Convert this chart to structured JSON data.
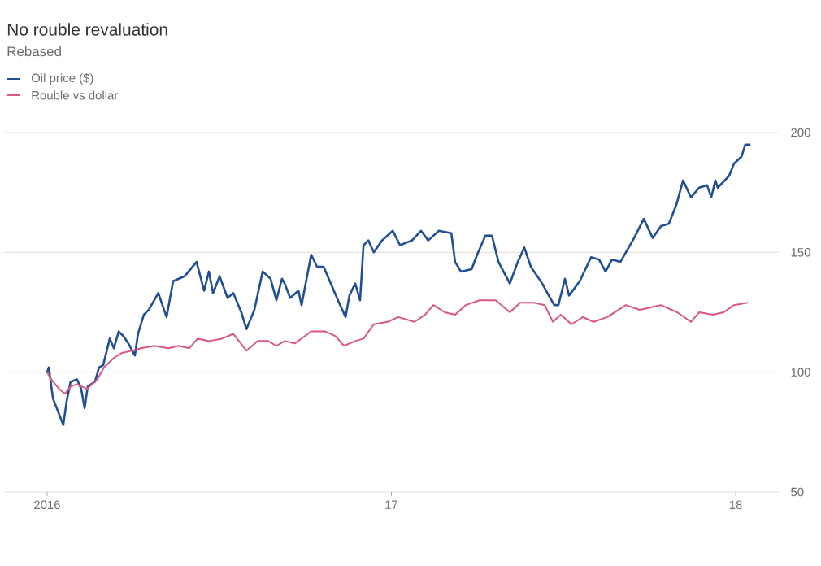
{
  "chart_data": {
    "type": "line",
    "title": "No rouble revaluation",
    "subtitle": "Rebased",
    "xlim": [
      2015.875,
      2018.125
    ],
    "ylim": [
      50,
      200
    ],
    "xticks": [
      {
        "value": 2016,
        "label": "2016"
      },
      {
        "value": 2017,
        "label": "17"
      },
      {
        "value": 2018,
        "label": "18"
      }
    ],
    "yticks": [
      50,
      100,
      150,
      200
    ],
    "grid": "y",
    "legend": "top left",
    "series": [
      {
        "name": "Oil price ($)",
        "color": "#204f98",
        "x": [
          2016.0,
          2016.005,
          2016.017,
          2016.028,
          2016.047,
          2016.057,
          2016.068,
          2016.087,
          2016.099,
          2016.109,
          2016.118,
          2016.139,
          2016.151,
          2016.163,
          2016.182,
          2016.194,
          2016.208,
          2016.222,
          2016.236,
          2016.255,
          2016.264,
          2016.281,
          2016.295,
          2016.323,
          2016.347,
          2016.366,
          2016.399,
          2016.434,
          2016.456,
          2016.47,
          2016.482,
          2016.501,
          2016.524,
          2016.541,
          2016.564,
          2016.579,
          2016.602,
          2016.626,
          2016.649,
          2016.666,
          2016.682,
          2016.69,
          2016.706,
          2016.73,
          2016.739,
          2016.767,
          2016.784,
          2016.803,
          2016.848,
          2016.867,
          2016.878,
          2016.895,
          2016.909,
          2016.919,
          2016.933,
          2016.949,
          2016.973,
          2017.004,
          2017.025,
          2017.06,
          2017.086,
          2017.107,
          2017.138,
          2017.174,
          2017.185,
          2017.202,
          2017.233,
          2017.249,
          2017.273,
          2017.292,
          2017.311,
          2017.344,
          2017.367,
          2017.386,
          2017.405,
          2017.438,
          2017.457,
          2017.473,
          2017.485,
          2017.504,
          2017.516,
          2017.547,
          2017.58,
          2017.603,
          2017.622,
          2017.641,
          2017.665,
          2017.681,
          2017.705,
          2017.733,
          2017.759,
          2017.783,
          2017.806,
          2017.828,
          2017.847,
          2017.87,
          2017.894,
          2017.917,
          2017.929,
          2017.941,
          2017.948,
          2017.981,
          2017.995,
          2018.017,
          2018.028,
          2018.043
        ],
        "values": [
          100,
          102,
          89,
          85,
          78,
          88,
          96,
          97,
          93,
          85,
          94,
          96,
          102,
          103,
          114,
          110,
          117,
          115,
          112,
          107,
          116,
          124,
          126,
          133,
          123,
          138,
          140,
          146,
          134,
          142,
          133,
          140,
          131,
          133,
          125,
          118,
          126,
          142,
          139,
          130,
          139,
          137,
          131,
          134,
          128,
          149,
          144,
          144,
          129,
          123,
          132,
          137,
          130,
          153,
          155,
          150,
          155,
          159,
          153,
          155,
          159,
          155,
          159,
          158,
          146,
          142,
          143,
          149,
          157,
          157,
          146,
          137,
          146,
          152,
          144,
          137,
          132,
          128,
          128,
          139,
          132,
          138,
          148,
          147,
          142,
          147,
          146,
          150,
          156,
          164,
          156,
          161,
          162,
          170,
          180,
          173,
          177,
          178,
          173,
          180,
          177,
          182,
          187,
          190,
          195,
          195
        ]
      },
      {
        "name": "Rouble vs dollar",
        "color": "#de5580",
        "x": [
          2016.0,
          2016.012,
          2016.035,
          2016.052,
          2016.068,
          2016.087,
          2016.116,
          2016.146,
          2016.165,
          2016.194,
          2016.217,
          2016.248,
          2016.272,
          2016.312,
          2016.352,
          2016.383,
          2016.413,
          2016.437,
          2016.47,
          2016.508,
          2016.541,
          2016.579,
          2016.612,
          2016.642,
          2016.666,
          2016.69,
          2016.72,
          2016.767,
          2016.808,
          2016.838,
          2016.862,
          2016.895,
          2016.919,
          2016.949,
          2016.989,
          2017.02,
          2017.067,
          2017.098,
          2017.122,
          2017.155,
          2017.185,
          2017.216,
          2017.256,
          2017.303,
          2017.344,
          2017.374,
          2017.414,
          2017.445,
          2017.469,
          2017.492,
          2017.523,
          2017.556,
          2017.587,
          2017.627,
          2017.681,
          2017.721,
          2017.783,
          2017.83,
          2017.87,
          2017.894,
          2017.934,
          2017.965,
          2017.995,
          2018.035
        ],
        "values": [
          100,
          97,
          93,
          91,
          94,
          95,
          93,
          97,
          102,
          106,
          108,
          109,
          110,
          111,
          110,
          111,
          110,
          114,
          113,
          114,
          116,
          109,
          113,
          113,
          111,
          113,
          112,
          117,
          117,
          115,
          111,
          113,
          114,
          120,
          121,
          123,
          121,
          124,
          128,
          125,
          124,
          128,
          130,
          130,
          125,
          129,
          129,
          128,
          121,
          124,
          120,
          123,
          121,
          123,
          128,
          126,
          128,
          125,
          121,
          125,
          124,
          125,
          128,
          129
        ]
      }
    ]
  }
}
